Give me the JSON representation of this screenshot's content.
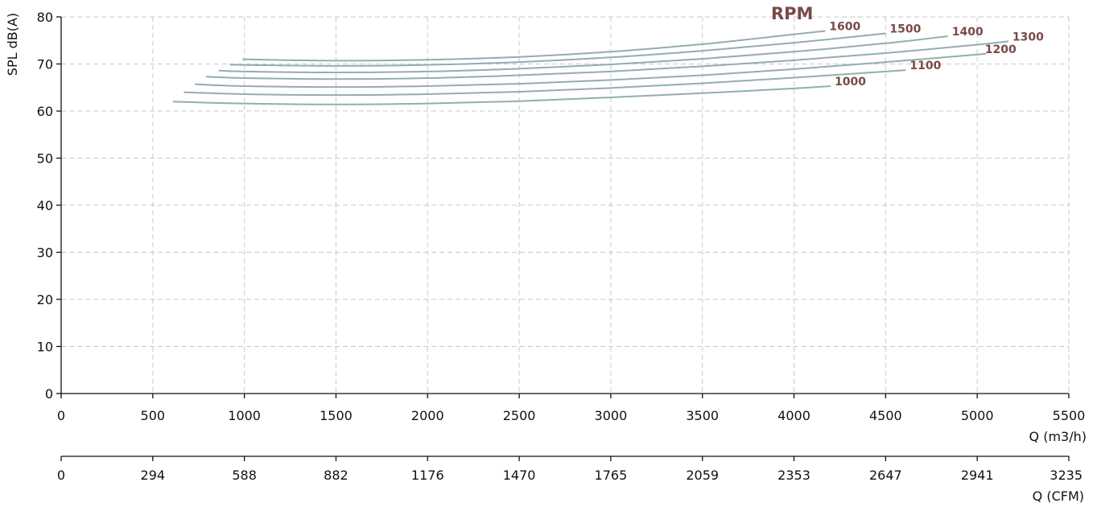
{
  "chart_data": {
    "type": "line",
    "title": "",
    "ylabel": "SPL dB(A)",
    "xlabel": "Q (m3/h)",
    "xlabel_secondary": "Q (CFM)",
    "legend_title": "RPM",
    "xlim": [
      0,
      5500
    ],
    "ylim": [
      0,
      80
    ],
    "grid": true,
    "y_ticks": [
      "0",
      "10",
      "20",
      "30",
      "40",
      "50",
      "60",
      "70",
      "80"
    ],
    "x_ticks": [
      "0",
      "500",
      "1000",
      "1500",
      "2000",
      "2500",
      "3000",
      "3500",
      "4000",
      "4500",
      "5000",
      "5500"
    ],
    "x_ticks_secondary": [
      "0",
      "294",
      "588",
      "882",
      "1176",
      "1470",
      "1765",
      "2059",
      "2353",
      "2647",
      "2941",
      "3235"
    ],
    "colors": {
      "curve": "#92adb4",
      "label": "#7a4a48",
      "axis": "#111111",
      "grid": "#c9c9c9"
    },
    "series": [
      {
        "name": "1000",
        "x": [
          610,
          1000,
          1500,
          2000,
          2500,
          3000,
          3500,
          4000,
          4200
        ],
        "y": [
          62.0,
          61.6,
          61.4,
          61.6,
          62.1,
          62.9,
          63.8,
          64.8,
          65.3
        ]
      },
      {
        "name": "1100",
        "x": [
          670,
          1000,
          1500,
          2000,
          2500,
          3000,
          3500,
          4000,
          4500,
          4610
        ],
        "y": [
          64.0,
          63.6,
          63.4,
          63.6,
          64.1,
          64.9,
          65.9,
          67.1,
          68.4,
          68.7
        ]
      },
      {
        "name": "1200",
        "x": [
          730,
          1000,
          1500,
          2000,
          2500,
          3000,
          3500,
          4000,
          4500,
          5000,
          5020
        ],
        "y": [
          65.7,
          65.3,
          65.1,
          65.3,
          65.8,
          66.6,
          67.6,
          68.9,
          70.4,
          72.0,
          72.1
        ]
      },
      {
        "name": "1300",
        "x": [
          790,
          1000,
          1500,
          2000,
          2500,
          3000,
          3500,
          4000,
          4500,
          5000,
          5170
        ],
        "y": [
          67.3,
          67.0,
          66.8,
          67.0,
          67.6,
          68.4,
          69.5,
          70.8,
          72.3,
          74.1,
          74.8
        ]
      },
      {
        "name": "1400",
        "x": [
          860,
          1000,
          1500,
          2000,
          2500,
          3000,
          3500,
          4000,
          4500,
          4840
        ],
        "y": [
          68.6,
          68.4,
          68.2,
          68.4,
          69.0,
          69.9,
          71.1,
          72.6,
          74.4,
          75.9
        ]
      },
      {
        "name": "1500",
        "x": [
          920,
          1000,
          1500,
          2000,
          2500,
          3000,
          3500,
          4000,
          4500
        ],
        "y": [
          69.9,
          69.8,
          69.6,
          69.8,
          70.4,
          71.4,
          72.8,
          74.5,
          76.5
        ]
      },
      {
        "name": "1600",
        "x": [
          990,
          1500,
          2000,
          2500,
          3000,
          3500,
          4000,
          4170
        ],
        "y": [
          71.0,
          70.7,
          70.9,
          71.5,
          72.6,
          74.2,
          76.3,
          77.0
        ]
      }
    ]
  }
}
